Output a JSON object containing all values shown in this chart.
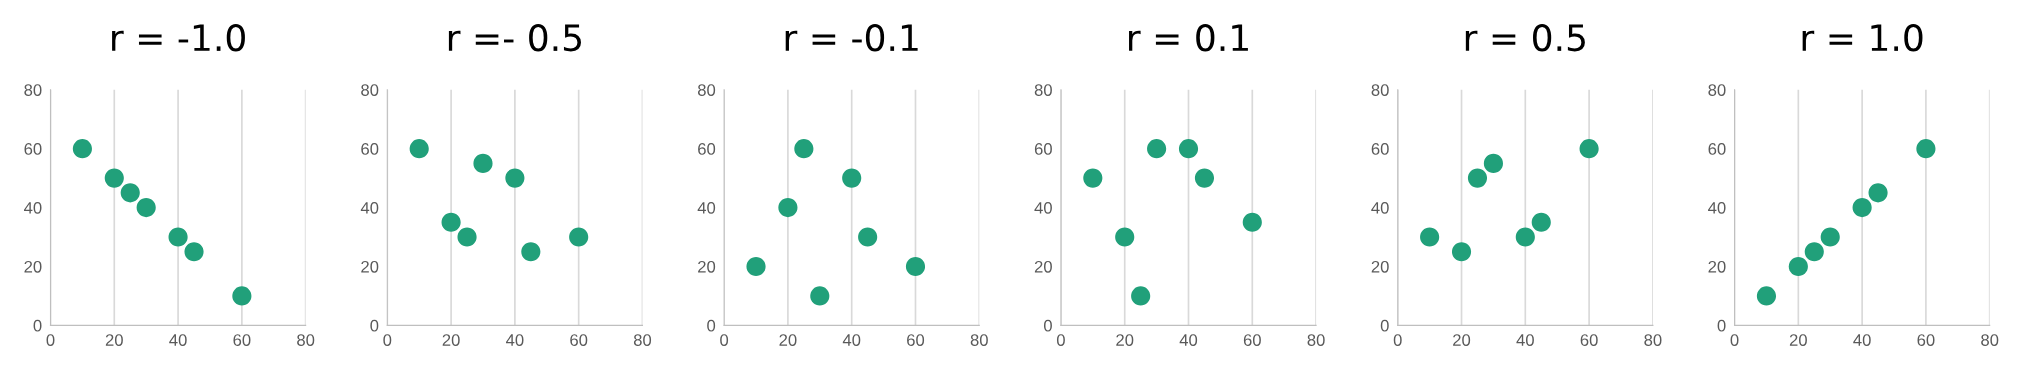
{
  "chart_data": [
    {
      "type": "scatter",
      "title": "r = -1.0",
      "x": [
        10,
        20,
        25,
        30,
        40,
        45,
        60
      ],
      "values": [
        60,
        50,
        45,
        40,
        30,
        25,
        10
      ],
      "color": "#21a07a",
      "xlim": [
        0,
        80
      ],
      "ylim": [
        0,
        80
      ],
      "xticks": [
        0,
        20,
        40,
        60,
        80
      ],
      "yticks": [
        0,
        20,
        40,
        60,
        80
      ],
      "grid": "x",
      "marker": "circle"
    },
    {
      "type": "scatter",
      "title": "r =- 0.5",
      "x": [
        10,
        20,
        25,
        30,
        40,
        45,
        60
      ],
      "values": [
        60,
        35,
        30,
        55,
        50,
        25,
        30
      ],
      "color": "#21a07a",
      "xlim": [
        0,
        80
      ],
      "ylim": [
        0,
        80
      ],
      "xticks": [
        0,
        20,
        40,
        60,
        80
      ],
      "yticks": [
        0,
        20,
        40,
        60,
        80
      ],
      "grid": "x",
      "marker": "circle"
    },
    {
      "type": "scatter",
      "title": "r = -0.1",
      "x": [
        10,
        20,
        25,
        30,
        40,
        45,
        60
      ],
      "values": [
        20,
        40,
        60,
        10,
        50,
        30,
        20
      ],
      "color": "#21a07a",
      "xlim": [
        0,
        80
      ],
      "ylim": [
        0,
        80
      ],
      "xticks": [
        0,
        20,
        40,
        60,
        80
      ],
      "yticks": [
        0,
        20,
        40,
        60,
        80
      ],
      "grid": "x",
      "marker": "circle"
    },
    {
      "type": "scatter",
      "title": "r = 0.1",
      "x": [
        10,
        20,
        25,
        30,
        40,
        45,
        60
      ],
      "values": [
        50,
        30,
        10,
        60,
        60,
        50,
        35
      ],
      "color": "#21a07a",
      "xlim": [
        0,
        80
      ],
      "ylim": [
        0,
        80
      ],
      "xticks": [
        0,
        20,
        40,
        60,
        80
      ],
      "yticks": [
        0,
        20,
        40,
        60,
        80
      ],
      "grid": "x",
      "marker": "circle"
    },
    {
      "type": "scatter",
      "title": "r = 0.5",
      "x": [
        10,
        20,
        25,
        30,
        40,
        45,
        60
      ],
      "values": [
        30,
        25,
        50,
        55,
        30,
        35,
        60
      ],
      "color": "#21a07a",
      "xlim": [
        0,
        80
      ],
      "ylim": [
        0,
        80
      ],
      "xticks": [
        0,
        20,
        40,
        60,
        80
      ],
      "yticks": [
        0,
        20,
        40,
        60,
        80
      ],
      "grid": "x",
      "marker": "circle"
    },
    {
      "type": "scatter",
      "title": "r = 1.0",
      "x": [
        10,
        20,
        25,
        30,
        40,
        45,
        60
      ],
      "values": [
        10,
        20,
        25,
        30,
        40,
        45,
        60
      ],
      "color": "#21a07a",
      "xlim": [
        0,
        80
      ],
      "ylim": [
        0,
        80
      ],
      "xticks": [
        0,
        20,
        40,
        60,
        80
      ],
      "yticks": [
        0,
        20,
        40,
        60,
        80
      ],
      "grid": "x",
      "marker": "circle"
    }
  ]
}
